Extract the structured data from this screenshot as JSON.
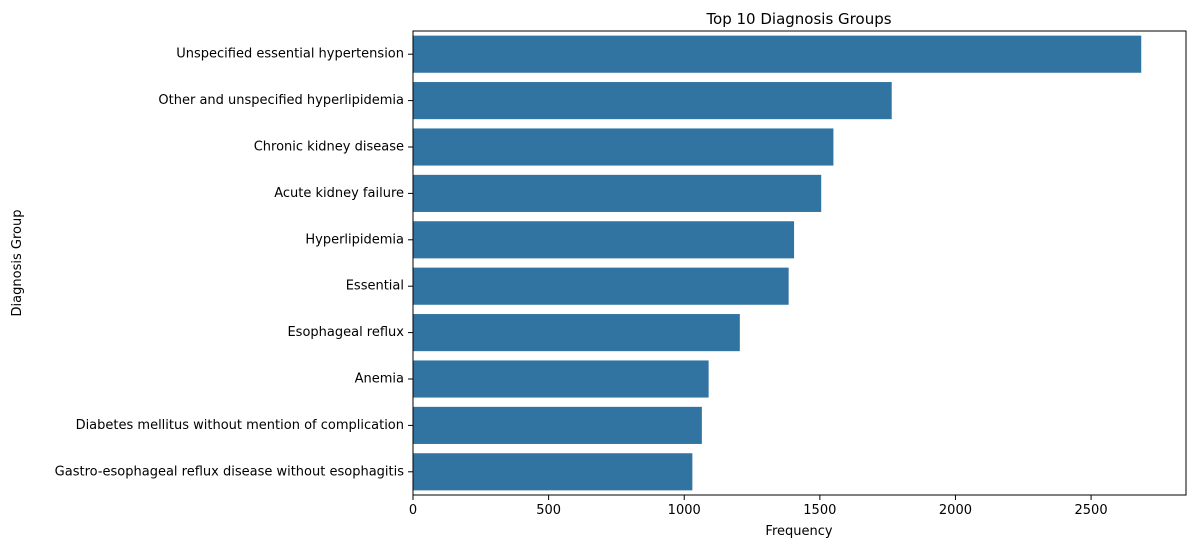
{
  "chart_data": {
    "type": "bar",
    "orientation": "horizontal",
    "title": "Top 10 Diagnosis Groups",
    "xlabel": "Frequency",
    "ylabel": "Diagnosis Group",
    "categories": [
      "Unspecified essential hypertension",
      "Other and unspecified hyperlipidemia",
      "Chronic kidney disease",
      "Acute kidney failure",
      "Hyperlipidemia",
      "Essential ",
      "Esophageal reflux",
      "Anemia",
      "Diabetes mellitus without mention of complication",
      "Gastro-esophageal reflux disease without esophagitis"
    ],
    "values": [
      2685,
      1765,
      1550,
      1505,
      1405,
      1385,
      1205,
      1090,
      1065,
      1030
    ],
    "xlim": [
      0,
      2850
    ],
    "xticks": [
      0,
      500,
      1000,
      1500,
      2000,
      2500
    ],
    "grid": false,
    "bar_color": "#3274a1"
  }
}
